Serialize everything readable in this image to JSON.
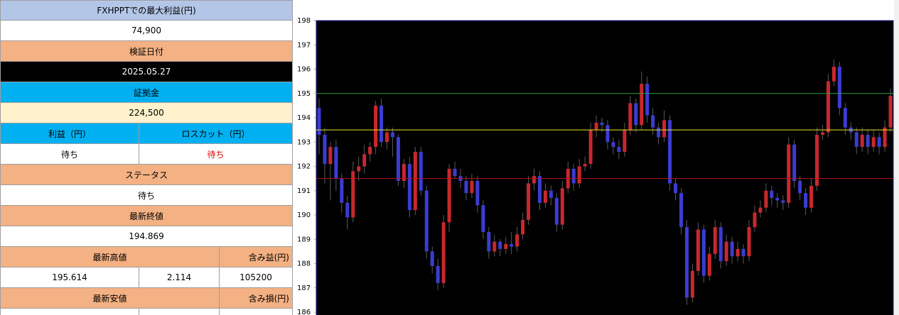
{
  "panel": {
    "rows": [
      [
        "FXHPPTでの最大利益(円)"
      ],
      [
        "74,900"
      ],
      [
        "検証日付"
      ],
      [
        "2025.05.27"
      ],
      [
        "証拠金"
      ],
      [
        "224,500"
      ],
      [
        "利益（円）",
        "ロスカット（円）"
      ],
      [
        "待ち",
        "待ち"
      ],
      [
        "ステータス"
      ],
      [
        "待ち"
      ],
      [
        "最新終値"
      ],
      [
        "194.869"
      ],
      [
        "最新高値",
        "含み益(円)"
      ],
      [
        "195.614",
        "2.114",
        "105200"
      ],
      [
        "最新安値",
        "含み損(円)"
      ]
    ]
  },
  "chart_data": {
    "type": "candlestick",
    "ylim": [
      186,
      198
    ],
    "yticks": [
      186,
      187,
      188,
      189,
      190,
      191,
      192,
      193,
      194,
      195,
      196,
      197,
      198
    ],
    "up_color": "#c8282d",
    "down_color": "#3c3cd2",
    "wick_color": "#5a5a5a",
    "reference_lines": [
      {
        "value": 195,
        "color": "#2ea043"
      },
      {
        "value": 193.5,
        "color": "#e6e632"
      },
      {
        "value": 191.5,
        "color": "#b4141e"
      }
    ],
    "candles": [
      [
        194.4,
        194.8,
        192.5,
        193.3
      ],
      [
        193.3,
        193.6,
        191.3,
        192.1
      ],
      [
        192.1,
        193.0,
        190.6,
        192.8
      ],
      [
        192.8,
        193.1,
        191.0,
        191.5
      ],
      [
        191.5,
        191.7,
        190.1,
        190.5
      ],
      [
        190.5,
        190.8,
        189.4,
        189.9
      ],
      [
        189.9,
        192.2,
        189.7,
        191.8
      ],
      [
        191.8,
        192.4,
        191.4,
        192.0
      ],
      [
        192.0,
        192.9,
        191.7,
        192.5
      ],
      [
        192.5,
        193.0,
        192.2,
        192.8
      ],
      [
        192.8,
        194.7,
        192.5,
        194.5
      ],
      [
        194.5,
        194.8,
        192.8,
        193.0
      ],
      [
        193.0,
        193.6,
        192.7,
        193.4
      ],
      [
        193.4,
        193.6,
        192.4,
        193.2
      ],
      [
        193.2,
        193.3,
        191.2,
        191.4
      ],
      [
        191.4,
        192.3,
        191.1,
        192.1
      ],
      [
        192.1,
        192.4,
        189.9,
        190.2
      ],
      [
        190.2,
        192.8,
        190.0,
        192.6
      ],
      [
        192.6,
        192.8,
        190.8,
        191.0
      ],
      [
        191.0,
        191.2,
        188.2,
        188.5
      ],
      [
        188.5,
        188.7,
        187.6,
        187.9
      ],
      [
        187.9,
        188.2,
        186.9,
        187.2
      ],
      [
        187.2,
        190.0,
        187.0,
        189.7
      ],
      [
        189.7,
        192.1,
        189.3,
        191.9
      ],
      [
        191.9,
        192.2,
        191.5,
        191.6
      ],
      [
        191.6,
        191.9,
        191.1,
        191.4
      ],
      [
        191.4,
        191.6,
        190.6,
        190.9
      ],
      [
        190.9,
        191.7,
        190.7,
        191.4
      ],
      [
        191.4,
        191.6,
        190.1,
        190.4
      ],
      [
        190.4,
        190.6,
        189.0,
        189.3
      ],
      [
        189.3,
        189.5,
        188.2,
        188.5
      ],
      [
        188.5,
        189.2,
        188.3,
        188.9
      ],
      [
        188.9,
        189.0,
        188.3,
        188.6
      ],
      [
        188.6,
        189.1,
        188.4,
        188.8
      ],
      [
        188.8,
        189.3,
        188.4,
        188.7
      ],
      [
        188.7,
        189.5,
        188.5,
        189.2
      ],
      [
        189.2,
        190.1,
        189.0,
        189.8
      ],
      [
        189.8,
        191.6,
        189.6,
        191.3
      ],
      [
        191.3,
        191.9,
        191.0,
        191.6
      ],
      [
        191.6,
        191.8,
        190.2,
        190.5
      ],
      [
        190.5,
        191.3,
        190.3,
        191.0
      ],
      [
        191.0,
        191.2,
        190.4,
        190.7
      ],
      [
        190.7,
        190.9,
        189.3,
        189.6
      ],
      [
        189.6,
        191.4,
        189.4,
        191.1
      ],
      [
        191.1,
        192.2,
        190.9,
        191.9
      ],
      [
        191.9,
        192.1,
        191.0,
        191.3
      ],
      [
        191.3,
        192.3,
        191.1,
        192.0
      ],
      [
        192.0,
        192.4,
        191.8,
        192.1
      ],
      [
        192.1,
        193.8,
        191.9,
        193.5
      ],
      [
        193.5,
        194.1,
        193.2,
        193.8
      ],
      [
        193.8,
        194.0,
        193.4,
        193.7
      ],
      [
        193.7,
        193.9,
        192.7,
        193.0
      ],
      [
        193.0,
        193.2,
        192.5,
        192.8
      ],
      [
        192.8,
        193.1,
        192.3,
        192.6
      ],
      [
        192.6,
        193.8,
        192.4,
        193.5
      ],
      [
        193.5,
        194.9,
        193.3,
        194.6
      ],
      [
        194.6,
        194.8,
        193.4,
        193.7
      ],
      [
        193.7,
        195.9,
        193.5,
        195.4
      ],
      [
        195.4,
        195.7,
        193.8,
        194.1
      ],
      [
        194.1,
        194.4,
        193.3,
        193.6
      ],
      [
        193.6,
        193.8,
        192.9,
        193.2
      ],
      [
        193.2,
        194.3,
        193.0,
        193.9
      ],
      [
        193.9,
        194.1,
        191.0,
        191.3
      ],
      [
        191.3,
        191.5,
        190.6,
        190.9
      ],
      [
        190.9,
        191.1,
        189.2,
        189.5
      ],
      [
        189.5,
        189.8,
        186.3,
        186.6
      ],
      [
        186.6,
        188.0,
        186.4,
        187.7
      ],
      [
        187.7,
        189.7,
        187.5,
        189.4
      ],
      [
        189.4,
        189.6,
        187.2,
        187.5
      ],
      [
        187.5,
        188.7,
        187.3,
        188.4
      ],
      [
        188.4,
        189.8,
        188.2,
        189.5
      ],
      [
        189.5,
        189.7,
        187.8,
        188.1
      ],
      [
        188.1,
        189.2,
        187.9,
        188.9
      ],
      [
        188.9,
        189.1,
        188.0,
        188.3
      ],
      [
        188.3,
        188.9,
        188.1,
        188.6
      ],
      [
        188.6,
        188.8,
        188.0,
        188.3
      ],
      [
        188.3,
        189.8,
        188.1,
        189.5
      ],
      [
        189.5,
        190.4,
        189.3,
        190.1
      ],
      [
        190.1,
        190.6,
        189.9,
        190.3
      ],
      [
        190.3,
        191.3,
        190.1,
        191.0
      ],
      [
        191.0,
        191.2,
        190.4,
        190.7
      ],
      [
        190.7,
        190.9,
        190.3,
        190.6
      ],
      [
        190.6,
        190.8,
        190.2,
        190.5
      ],
      [
        190.5,
        193.2,
        190.3,
        192.9
      ],
      [
        192.9,
        193.1,
        191.1,
        191.4
      ],
      [
        191.4,
        191.6,
        190.6,
        190.9
      ],
      [
        190.9,
        191.1,
        190.0,
        190.3
      ],
      [
        190.3,
        191.5,
        190.1,
        191.2
      ],
      [
        191.2,
        193.6,
        191.0,
        193.3
      ],
      [
        193.3,
        193.7,
        193.1,
        193.4
      ],
      [
        193.4,
        195.8,
        193.2,
        195.5
      ],
      [
        195.5,
        196.4,
        195.3,
        196.1
      ],
      [
        196.1,
        196.3,
        194.1,
        194.4
      ],
      [
        194.4,
        194.6,
        193.3,
        193.6
      ],
      [
        193.6,
        193.8,
        193.1,
        193.4
      ],
      [
        193.4,
        193.6,
        192.5,
        192.8
      ],
      [
        192.8,
        193.6,
        192.6,
        193.3
      ],
      [
        193.3,
        193.5,
        192.5,
        192.8
      ],
      [
        192.8,
        193.5,
        192.6,
        193.2
      ],
      [
        193.2,
        193.4,
        192.5,
        192.8
      ],
      [
        192.8,
        193.9,
        192.6,
        193.6
      ],
      [
        193.6,
        195.2,
        193.4,
        194.9
      ]
    ]
  }
}
